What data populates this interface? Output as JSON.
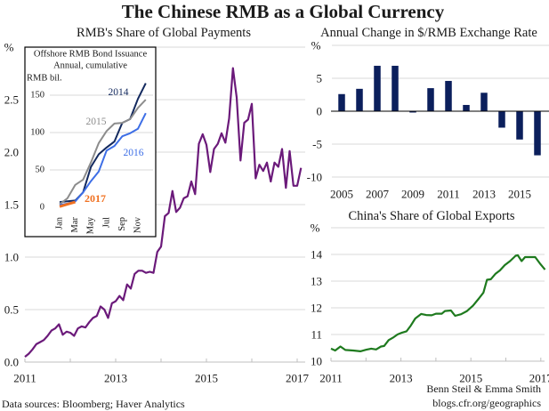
{
  "title": "The Chinese RMB as a Global Currency",
  "footer": {
    "sources": "Data sources: Bloomberg; Haver Analytics",
    "authors": "Benn Steil & Emma Smith",
    "url": "blogs.cfr.org/geographics"
  },
  "chart_data": [
    {
      "id": "rmb-share-payments",
      "type": "line",
      "title": "RMB's Share of Global Payments",
      "xlabel": "",
      "ylabel": "%",
      "x_start": "2011-01",
      "frequency": "monthly",
      "xlim": [
        2011,
        2017
      ],
      "ylim": [
        0,
        3
      ],
      "yticks": [
        0.0,
        0.5,
        1.0,
        1.5,
        2.0,
        2.5
      ],
      "ytick_labels": [
        "0.0",
        "0.5",
        "1.0",
        "1.5",
        "2.0",
        "2.5"
      ],
      "xticks": [
        2011,
        2013,
        2015,
        2017
      ],
      "xtick_labels": [
        "2011",
        "2013",
        "2015",
        "2017"
      ],
      "grid": true,
      "series": [
        {
          "name": "RMB share of global payments",
          "color": "#6b1a7a",
          "values": [
            0.05,
            0.08,
            0.12,
            0.17,
            0.19,
            0.21,
            0.25,
            0.3,
            0.32,
            0.36,
            0.26,
            0.29,
            0.28,
            0.25,
            0.32,
            0.34,
            0.33,
            0.38,
            0.42,
            0.44,
            0.53,
            0.5,
            0.42,
            0.56,
            0.58,
            0.63,
            0.59,
            0.74,
            0.7,
            0.84,
            0.87,
            0.87,
            0.85,
            0.86,
            0.85,
            1.05,
            1.1,
            1.39,
            1.42,
            1.63,
            1.43,
            1.47,
            1.56,
            1.58,
            1.72,
            1.6,
            2.08,
            2.17,
            2.07,
            1.81,
            2.03,
            2.08,
            2.18,
            2.09,
            2.32,
            2.8,
            2.52,
            1.92,
            2.28,
            2.31,
            2.46,
            1.75,
            1.88,
            1.82,
            1.9,
            1.72,
            1.9,
            1.86,
            2.03,
            1.66,
            2.01,
            1.68,
            1.68,
            1.85
          ]
        }
      ]
    },
    {
      "id": "offshore-bond-issuance-inset",
      "type": "line",
      "title": "Offshore RMB Bond Issuance",
      "subtitle": "Annual, cumulative",
      "ylabel": "RMB bil.",
      "categories": [
        "Jan",
        "Feb",
        "Mar",
        "Apr",
        "May",
        "Jun",
        "Jul",
        "Aug",
        "Sep",
        "Oct",
        "Nov",
        "Dec"
      ],
      "xtick_labels": [
        "Jan",
        "Mar",
        "May",
        "Jul",
        "Sep",
        "Nov"
      ],
      "yticks": [
        0,
        50,
        100,
        150
      ],
      "ytick_labels": [
        "0",
        "50",
        "100",
        "150"
      ],
      "ylim": [
        0,
        175
      ],
      "grid": true,
      "legend": "inline",
      "series": [
        {
          "name": "2014",
          "color": "#13295e",
          "values": [
            7,
            8,
            9,
            20,
            54,
            71,
            80,
            88,
            113,
            118,
            145,
            166
          ]
        },
        {
          "name": "2015",
          "color": "#8c8c8c",
          "values": [
            4,
            12,
            30,
            37,
            60,
            86,
            102,
            112,
            113,
            118,
            133,
            144
          ]
        },
        {
          "name": "2016",
          "color": "#3d6ee6",
          "values": [
            3,
            5,
            8,
            20,
            35,
            48,
            76,
            82,
            95,
            99,
            105,
            126
          ]
        },
        {
          "name": "2017",
          "color": "#f07020",
          "values": [
            1,
            4,
            7
          ]
        }
      ]
    },
    {
      "id": "usd-rmb-annual-change",
      "type": "bar",
      "title": "Annual Change in $/RMB Exchange Rate",
      "xlabel": "",
      "ylabel": "%",
      "categories": [
        2005,
        2006,
        2007,
        2008,
        2009,
        2010,
        2011,
        2012,
        2013,
        2014,
        2015,
        2016
      ],
      "values": [
        2.6,
        3.4,
        6.9,
        6.9,
        -0.2,
        3.5,
        4.6,
        0.95,
        2.8,
        -2.5,
        -4.3,
        -6.7
      ],
      "color": "#0b1f5c",
      "ylim": [
        -10,
        10
      ],
      "yticks": [
        -10,
        -5,
        0,
        5
      ],
      "ytick_labels": [
        "-10",
        "-5",
        "0",
        "5"
      ],
      "xticks": [
        2005,
        2007,
        2009,
        2011,
        2013,
        2015
      ],
      "xtick_labels": [
        "2005",
        "2007",
        "2009",
        "2011",
        "2013",
        "2015"
      ],
      "grid": true
    },
    {
      "id": "china-share-global-exports",
      "type": "line",
      "title": "China's Share of Global Exports",
      "xlabel": "",
      "ylabel": "%",
      "xlim": [
        2011,
        2017
      ],
      "ylim": [
        10,
        15
      ],
      "yticks": [
        10,
        11,
        12,
        13,
        14
      ],
      "ytick_labels": [
        "10",
        "11",
        "12",
        "13",
        "14"
      ],
      "xticks": [
        2011,
        2013,
        2015,
        2017
      ],
      "xtick_labels": [
        "2011",
        "2013",
        "2015",
        "2017"
      ],
      "grid": true,
      "series": [
        {
          "name": "China share of global exports",
          "color": "#1e7a1e",
          "x": [
            2011.0,
            2011.12,
            2011.27,
            2011.41,
            2011.63,
            2011.84,
            2012.01,
            2012.15,
            2012.29,
            2012.43,
            2012.52,
            2012.65,
            2012.77,
            2012.9,
            2013.03,
            2013.16,
            2013.28,
            2013.41,
            2013.58,
            2013.72,
            2013.88,
            2014.0,
            2014.17,
            2014.26,
            2014.43,
            2014.55,
            2014.72,
            2014.89,
            2015.06,
            2015.23,
            2015.36,
            2015.46,
            2015.57,
            2015.7,
            2015.83,
            2015.97,
            2016.12,
            2016.28,
            2016.34,
            2016.45,
            2016.55,
            2016.72,
            2016.84,
            2016.97,
            2017.12
          ],
          "values": [
            10.47,
            10.4,
            10.55,
            10.42,
            10.4,
            10.37,
            10.43,
            10.47,
            10.44,
            10.55,
            10.57,
            10.79,
            10.88,
            11.0,
            11.07,
            11.12,
            11.33,
            11.6,
            11.77,
            11.73,
            11.72,
            11.78,
            11.78,
            11.88,
            11.9,
            11.7,
            11.76,
            11.88,
            12.08,
            12.35,
            12.57,
            13.05,
            13.07,
            13.27,
            13.4,
            13.6,
            13.75,
            13.95,
            13.97,
            13.75,
            13.9,
            13.9,
            13.9,
            13.67,
            13.43
          ]
        }
      ]
    }
  ]
}
